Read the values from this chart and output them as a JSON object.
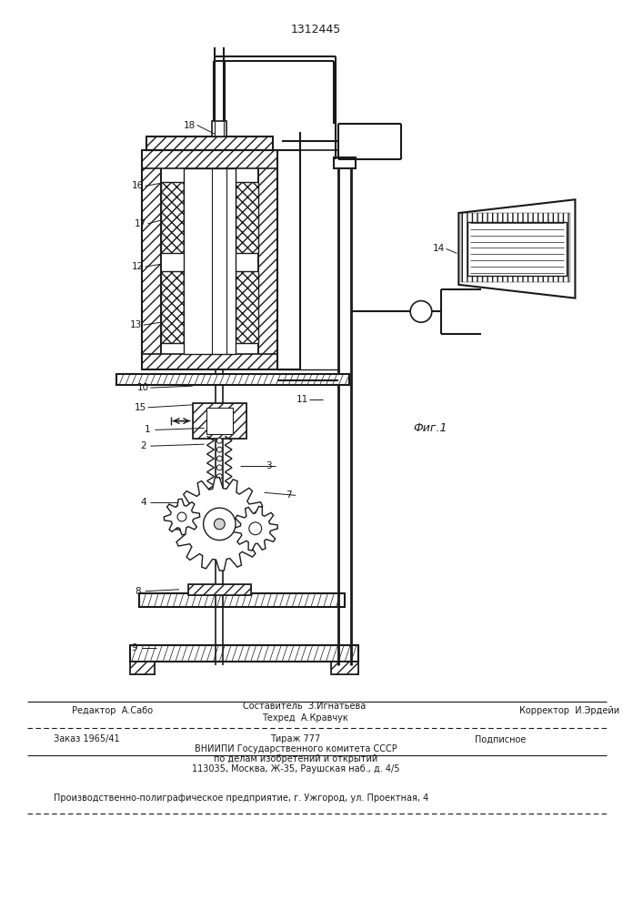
{
  "patent_number": "1312445",
  "fig_label": "Фиг.1",
  "editor_line": "Редактор  А.Сабо",
  "composer_line1": "Составитель  З.Игнатьева",
  "techred_line": "Техред  А.Кравчук",
  "corrector_line": "Корректор  И.Эрдейи",
  "order_line": "Заказ 1965/41",
  "tirazh_line": "Тираж 777",
  "podpisnoe_line": "Подписное",
  "vniip_line1": "ВНИИПИ Государственного комитета СССР",
  "vniip_line2": "по делам изобретений и открытий",
  "vniip_line3": "113035, Москва, Ж-35, Раушская наб., д. 4/5",
  "printer_line": "Производственно-полиграфическое предприятие, г. Ужгород, ул. Проектная, 4",
  "bg_color": "#ffffff",
  "line_color": "#1a1a1a",
  "text_color": "#1a1a1a"
}
